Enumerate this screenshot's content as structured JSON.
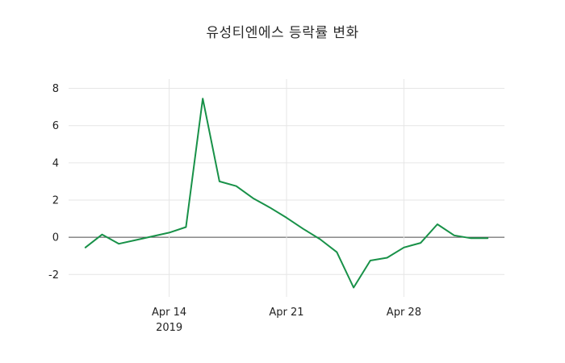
{
  "chart_data": {
    "type": "line",
    "title": "유성티엔에스 등락률 변화",
    "series_name": "등락률",
    "x": [
      "2019-04-09",
      "2019-04-10",
      "2019-04-11",
      "2019-04-12",
      "2019-04-13",
      "2019-04-14",
      "2019-04-15",
      "2019-04-16",
      "2019-04-17",
      "2019-04-18",
      "2019-04-19",
      "2019-04-20",
      "2019-04-21",
      "2019-04-22",
      "2019-04-23",
      "2019-04-24",
      "2019-04-25",
      "2019-04-26",
      "2019-04-27",
      "2019-04-28",
      "2019-04-29",
      "2019-04-30",
      "2019-05-01",
      "2019-05-02",
      "2019-05-03"
    ],
    "values": [
      -0.55,
      0.15,
      -0.35,
      -0.15,
      0.05,
      0.25,
      0.55,
      7.45,
      3.0,
      2.75,
      2.1,
      1.6,
      1.05,
      0.45,
      -0.1,
      -0.8,
      -2.7,
      -1.25,
      -1.1,
      -0.55,
      -0.3,
      0.7,
      0.1,
      -0.05,
      -0.05
    ],
    "ylim": [
      -3.2,
      8.5
    ],
    "xlim": [
      "2019-04-08",
      "2019-05-04"
    ],
    "yticks": [
      -2,
      0,
      2,
      4,
      6,
      8
    ],
    "xticks": [
      {
        "label": "Apr 14",
        "sub": "2019",
        "date": "2019-04-14"
      },
      {
        "label": "Apr 21",
        "sub": "",
        "date": "2019-04-21"
      },
      {
        "label": "Apr 28",
        "sub": "",
        "date": "2019-04-28"
      }
    ],
    "line_color": "#189148",
    "grid_color": "#e6e6e6",
    "zeroline_color": "#4a4a4a",
    "background": "#ffffff",
    "grid": true,
    "legend": "none"
  }
}
